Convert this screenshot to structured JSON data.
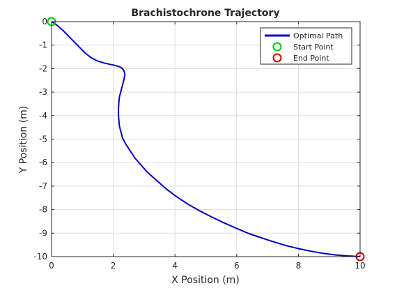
{
  "chart_data": {
    "type": "line",
    "title": "Brachistochrone Trajectory",
    "xlabel": "X Position (m)",
    "ylabel": "Y Position (m)",
    "xlim": [
      0,
      10
    ],
    "ylim": [
      -10,
      0
    ],
    "xticks": [
      0,
      2,
      4,
      6,
      8,
      10
    ],
    "yticks": [
      0,
      -1,
      -2,
      -3,
      -4,
      -5,
      -6,
      -7,
      -8,
      -9,
      -10
    ],
    "xtick_labels": [
      "0",
      "2",
      "4",
      "6",
      "8",
      "10"
    ],
    "ytick_labels": [
      "0",
      "-1",
      "-2",
      "-3",
      "-4",
      "-5",
      "-6",
      "-7",
      "-8",
      "-9",
      "-10"
    ],
    "grid": true,
    "legend_position": "top-right",
    "series": [
      {
        "name": "Optimal Path",
        "kind": "line",
        "color": "#0000c0",
        "x": [
          0,
          0.1,
          0.2,
          0.35,
          0.5,
          0.65,
          0.8,
          0.95,
          1.1,
          1.3,
          1.5,
          1.7,
          1.9,
          2.05,
          2.2,
          2.3,
          2.35,
          2.38,
          2.35,
          2.3,
          2.25,
          2.2,
          2.18,
          2.17,
          2.17,
          2.18,
          2.2,
          2.25,
          2.3,
          2.4,
          2.55,
          2.7,
          2.9,
          3.1,
          3.4,
          3.7,
          4.0,
          4.4,
          4.8,
          5.2,
          5.6,
          6.0,
          6.4,
          6.8,
          7.2,
          7.6,
          8.0,
          8.4,
          8.8,
          9.2,
          9.6,
          10.0
        ],
        "y": [
          0,
          -0.08,
          -0.18,
          -0.35,
          -0.55,
          -0.75,
          -0.95,
          -1.15,
          -1.35,
          -1.55,
          -1.68,
          -1.76,
          -1.82,
          -1.86,
          -1.92,
          -2.0,
          -2.1,
          -2.25,
          -2.45,
          -2.7,
          -2.95,
          -3.2,
          -3.45,
          -3.7,
          -3.95,
          -4.2,
          -4.45,
          -4.7,
          -4.95,
          -5.2,
          -5.5,
          -5.8,
          -6.1,
          -6.4,
          -6.75,
          -7.1,
          -7.4,
          -7.75,
          -8.05,
          -8.32,
          -8.57,
          -8.8,
          -9.02,
          -9.2,
          -9.37,
          -9.53,
          -9.66,
          -9.77,
          -9.86,
          -9.93,
          -9.97,
          -10.0
        ]
      },
      {
        "name": "Start Point",
        "kind": "marker",
        "color": "#00cc00",
        "x": [
          0
        ],
        "y": [
          0
        ]
      },
      {
        "name": "End Point",
        "kind": "marker",
        "color": "#cc0000",
        "x": [
          10
        ],
        "y": [
          -10
        ]
      }
    ]
  }
}
